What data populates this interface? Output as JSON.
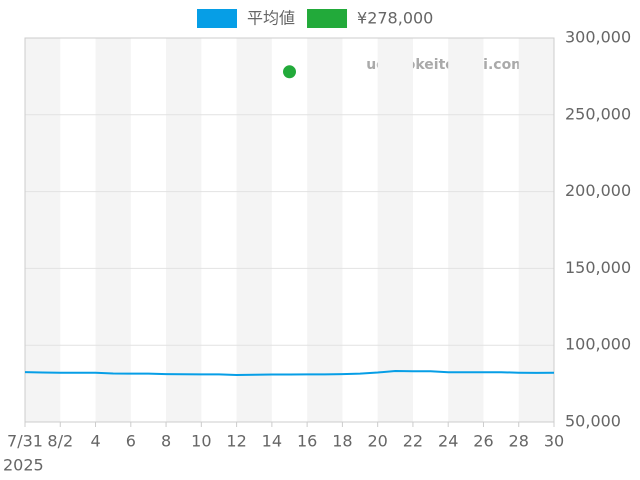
{
  "chart_data": {
    "type": "line",
    "x": [
      "2025-07-31",
      "2025-08-01",
      "2025-08-02",
      "2025-08-03",
      "2025-08-04",
      "2025-08-05",
      "2025-08-06",
      "2025-08-07",
      "2025-08-08",
      "2025-08-09",
      "2025-08-10",
      "2025-08-11",
      "2025-08-12",
      "2025-08-13",
      "2025-08-14",
      "2025-08-15",
      "2025-08-16",
      "2025-08-17",
      "2025-08-18",
      "2025-08-19",
      "2025-08-20",
      "2025-08-21",
      "2025-08-22",
      "2025-08-23",
      "2025-08-24",
      "2025-08-25",
      "2025-08-26",
      "2025-08-27",
      "2025-08-28",
      "2025-08-29",
      "2025-08-30"
    ],
    "series": [
      {
        "name": "平均値",
        "color": "#069ee6",
        "values": [
          82500,
          82200,
          82100,
          82100,
          82100,
          81600,
          81500,
          81500,
          81200,
          81100,
          81000,
          81000,
          80600,
          80800,
          80900,
          80900,
          81000,
          81000,
          81200,
          81500,
          82200,
          83200,
          83000,
          83000,
          82400,
          82400,
          82400,
          82400,
          82100,
          82000,
          82100
        ]
      },
      {
        "name": "¥278,000",
        "color": "#22aa3a",
        "marker": "point",
        "values": [
          null,
          null,
          null,
          null,
          null,
          null,
          null,
          null,
          null,
          null,
          null,
          null,
          null,
          null,
          null,
          278000,
          null,
          null,
          null,
          null,
          null,
          null,
          null,
          null,
          null,
          null,
          null,
          null,
          null,
          null,
          null
        ]
      }
    ],
    "xlim": [
      "2025-07-31",
      "2025-08-30"
    ],
    "xticks": [
      {
        "value": "2025-07-31",
        "label": "7/31"
      },
      {
        "value": "2025-08-02",
        "label": "8/2"
      },
      {
        "value": "2025-08-04",
        "label": "4"
      },
      {
        "value": "2025-08-06",
        "label": "6"
      },
      {
        "value": "2025-08-08",
        "label": "8"
      },
      {
        "value": "2025-08-10",
        "label": "10"
      },
      {
        "value": "2025-08-12",
        "label": "12"
      },
      {
        "value": "2025-08-14",
        "label": "14"
      },
      {
        "value": "2025-08-16",
        "label": "16"
      },
      {
        "value": "2025-08-18",
        "label": "18"
      },
      {
        "value": "2025-08-20",
        "label": "20"
      },
      {
        "value": "2025-08-22",
        "label": "22"
      },
      {
        "value": "2025-08-24",
        "label": "24"
      },
      {
        "value": "2025-08-26",
        "label": "26"
      },
      {
        "value": "2025-08-28",
        "label": "28"
      },
      {
        "value": "2025-08-30",
        "label": "30"
      }
    ],
    "x_year_label": "2025",
    "ylim": [
      50000,
      300000
    ],
    "yticks": [
      {
        "value": 50000,
        "label": "50,000"
      },
      {
        "value": 100000,
        "label": "100,000"
      },
      {
        "value": 150000,
        "label": "150,000"
      },
      {
        "value": 200000,
        "label": "200,000"
      },
      {
        "value": 250000,
        "label": "250,000"
      },
      {
        "value": 300000,
        "label": "300,000"
      }
    ],
    "y_axis_side": "right",
    "grid": true,
    "legend": "top",
    "watermark": "udedokeitoushi.com"
  }
}
